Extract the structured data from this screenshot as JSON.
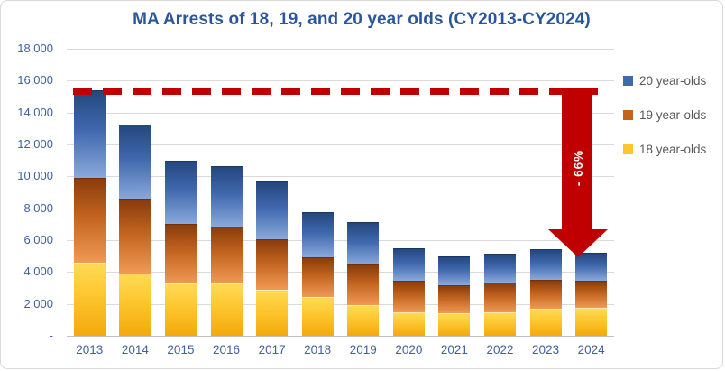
{
  "title": "MA Arrests of 18, 19, and 20 year olds (CY2013-CY2024)",
  "colors": {
    "title_text": "#2a569d",
    "axis_text": "#41609f",
    "legend_text": "#595959",
    "gridline": "#dadada",
    "axis_line": "#c0c0c0",
    "annotation_red": "#c00000",
    "chart_border": "#d9d9d9",
    "series": {
      "18 year-olds": {
        "swatch": "#ffc62e",
        "gradient": [
          "#ffda55",
          "#fdc62e",
          "#f3a90c"
        ],
        "edge": "#ffe9a8"
      },
      "19 year-olds": {
        "swatch": "#c55f1c",
        "gradient": [
          "#8a3c0c",
          "#c2641f",
          "#f09a55"
        ],
        "edge": "#71300a"
      },
      "20 year-olds": {
        "swatch": "#3f68ad",
        "gradient": [
          "#24477e",
          "#3f68ad",
          "#8aa9dc"
        ],
        "edge": "#1b3864"
      }
    }
  },
  "legend": {
    "items": [
      {
        "label": "20 year-olds",
        "series": "20 year-olds"
      },
      {
        "label": "19 year-olds",
        "series": "19 year-olds"
      },
      {
        "label": "18 year-olds",
        "series": "18 year-olds"
      }
    ]
  },
  "chart_data": {
    "type": "bar",
    "stacked": true,
    "title": "MA Arrests of 18, 19, and 20 year olds (CY2013-CY2024)",
    "categories": [
      "2013",
      "2014",
      "2015",
      "2016",
      "2017",
      "2018",
      "2019",
      "2020",
      "2021",
      "2022",
      "2023",
      "2024"
    ],
    "series": [
      {
        "name": "18 year-olds",
        "values": [
          4600,
          3900,
          3300,
          3300,
          2900,
          2450,
          1950,
          1500,
          1400,
          1500,
          1700,
          1750
        ]
      },
      {
        "name": "19 year-olds",
        "values": [
          5300,
          4650,
          3700,
          3550,
          3150,
          2450,
          2500,
          1950,
          1750,
          1850,
          1800,
          1700
        ]
      },
      {
        "name": "20 year-olds",
        "values": [
          5500,
          4700,
          4000,
          3800,
          3650,
          2850,
          2700,
          2050,
          1850,
          1800,
          1950,
          1750
        ]
      }
    ],
    "stack_totals": [
      15400,
      13250,
      11000,
      10650,
      9700,
      7750,
      7150,
      5500,
      5000,
      5150,
      5450,
      5200
    ],
    "xlabel": "",
    "ylabel": "",
    "ylim": [
      0,
      18000
    ],
    "y_ticks": [
      {
        "label": "18,000",
        "value": 18000
      },
      {
        "label": "16,000",
        "value": 16000
      },
      {
        "label": "14,000",
        "value": 14000
      },
      {
        "label": "12,000",
        "value": 12000
      },
      {
        "label": "10,000",
        "value": 10000
      },
      {
        "label": "8,000",
        "value": 8000
      },
      {
        "label": "6,000",
        "value": 6000
      },
      {
        "label": "4,000",
        "value": 4000
      },
      {
        "label": "2,000",
        "value": 2000
      },
      {
        "label": "-",
        "value": 0
      }
    ],
    "grid": true,
    "legend_position": "right",
    "annotation": {
      "type": "arrow-down",
      "label": "- 66%",
      "reference_value": 15400,
      "points_to_category": "2024"
    }
  }
}
